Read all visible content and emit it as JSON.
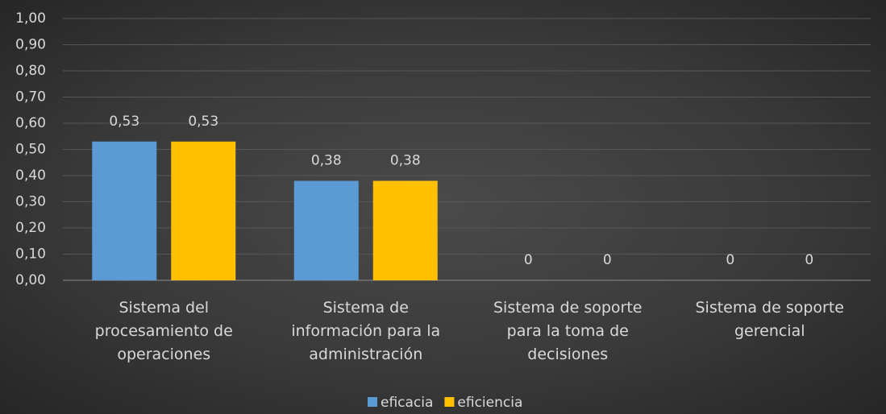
{
  "chart_data": {
    "type": "bar",
    "categories": [
      "Sistema del procesamiento de operaciones",
      "Sistema de información para la administración",
      "Sistema de soporte para la toma de decisiones",
      "Sistema de soporte gerencial"
    ],
    "series": [
      {
        "name": "eficacia",
        "color": "#5b9bd5",
        "values": [
          0.53,
          0.38,
          0,
          0
        ],
        "value_labels": [
          "0,53",
          "0,38",
          "0",
          "0"
        ]
      },
      {
        "name": "eficiencia",
        "color": "#ffc000",
        "values": [
          0.53,
          0.38,
          0,
          0
        ],
        "value_labels": [
          "0,53",
          "0,38",
          "0",
          "0"
        ]
      }
    ],
    "ylim": [
      0,
      1
    ],
    "yticks": [
      {
        "value": 0,
        "label": "0,00"
      },
      {
        "value": 0.1,
        "label": "0,10"
      },
      {
        "value": 0.2,
        "label": "0,20"
      },
      {
        "value": 0.3,
        "label": "0,30"
      },
      {
        "value": 0.4,
        "label": "0,40"
      },
      {
        "value": 0.5,
        "label": "0,50"
      },
      {
        "value": 0.6,
        "label": "0,60"
      },
      {
        "value": 0.7,
        "label": "0,70"
      },
      {
        "value": 0.8,
        "label": "0,80"
      },
      {
        "value": 0.9,
        "label": "0,90"
      },
      {
        "value": 1,
        "label": "1,00"
      }
    ],
    "grid": true,
    "legend": "bottom"
  }
}
